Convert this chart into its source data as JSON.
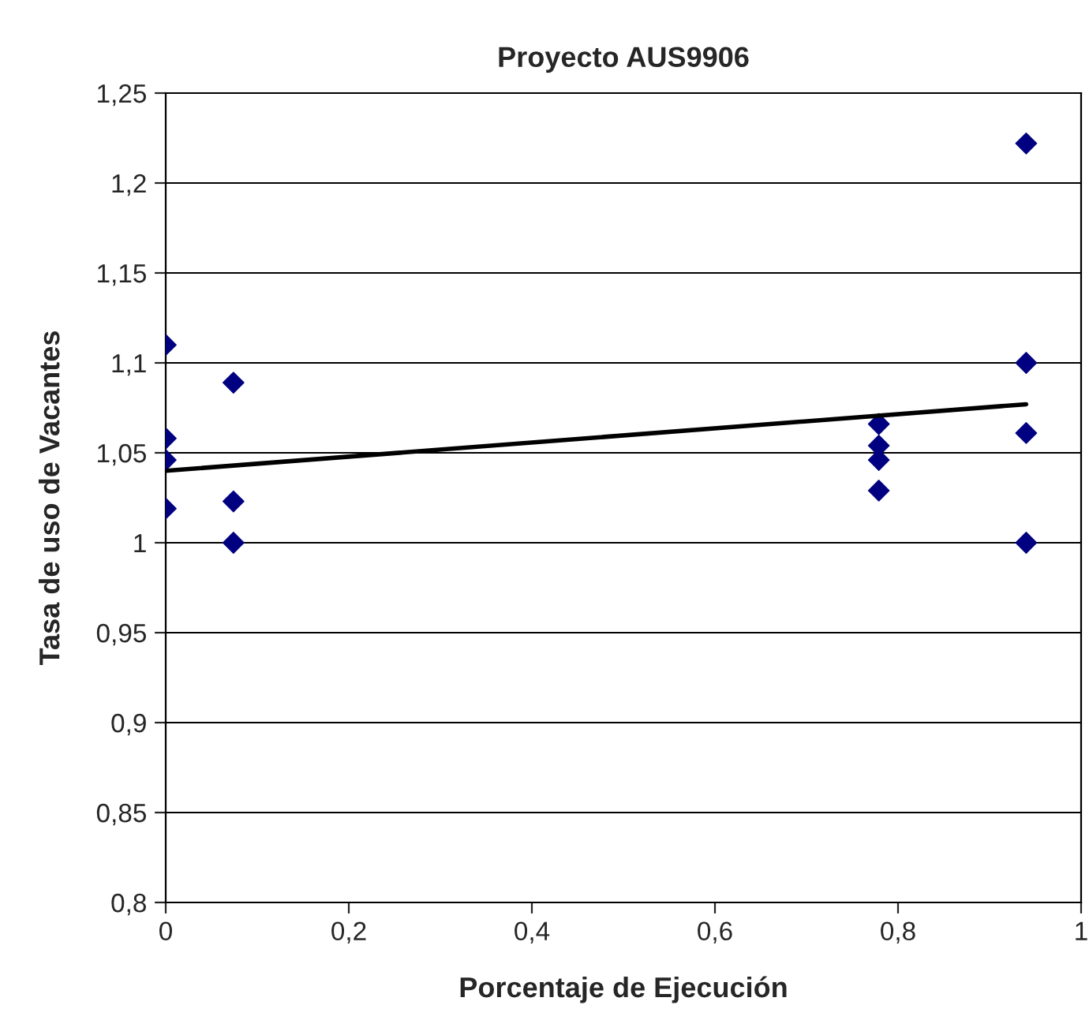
{
  "chart_data": {
    "type": "scatter",
    "title": "Proyecto AUS9906",
    "xlabel": "Porcentaje de Ejecución",
    "ylabel": "Tasa de uso de Vacantes",
    "series": [
      {
        "type": "scatter",
        "color": "#000080",
        "marker": "diamond",
        "x": [
          0,
          0,
          0,
          0,
          0.074,
          0.074,
          0.074,
          0.779,
          0.779,
          0.779,
          0.779,
          0.94,
          0.94,
          0.94,
          0.94
        ],
        "values": [
          1.11,
          1.058,
          1.046,
          1.019,
          1.089,
          1.023,
          1.0,
          1.066,
          1.054,
          1.046,
          1.029,
          1.222,
          1.1,
          1.061,
          1.0
        ]
      },
      {
        "type": "line",
        "color": "#000000",
        "x": [
          0,
          0.94
        ],
        "values": [
          1.04,
          1.077
        ]
      }
    ],
    "xlim": [
      0,
      1
    ],
    "xticks": [
      {
        "value": 0,
        "label": "0"
      },
      {
        "value": 0.2,
        "label": "0,2"
      },
      {
        "value": 0.4,
        "label": "0,4"
      },
      {
        "value": 0.6,
        "label": "0,6"
      },
      {
        "value": 0.8,
        "label": "0,8"
      },
      {
        "value": 1,
        "label": "1"
      }
    ],
    "ylim": [
      0.8,
      1.25
    ],
    "yticks": [
      {
        "value": 0.8,
        "label": "0,8"
      },
      {
        "value": 0.85,
        "label": "0,85"
      },
      {
        "value": 0.9,
        "label": "0,9"
      },
      {
        "value": 0.95,
        "label": "0,95"
      },
      {
        "value": 1,
        "label": "1"
      },
      {
        "value": 1.05,
        "label": "1,05"
      },
      {
        "value": 1.1,
        "label": "1,1"
      },
      {
        "value": 1.15,
        "label": "1,15"
      },
      {
        "value": 1.2,
        "label": "1,2"
      },
      {
        "value": 1.25,
        "label": "1,25"
      }
    ],
    "grid": "y"
  }
}
